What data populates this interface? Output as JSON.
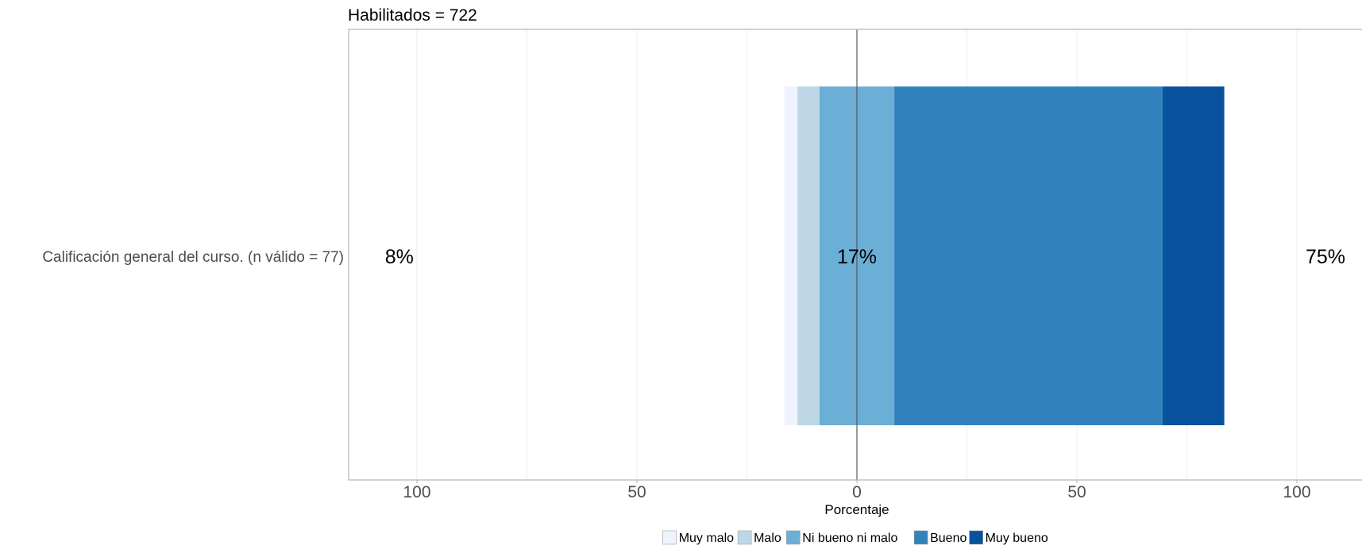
{
  "chart_data": {
    "type": "bar",
    "subtype": "diverging-stacked-horizontal",
    "title": "Habilitados = 722",
    "xlabel": "Porcentaje",
    "ylabel": "",
    "xlim": [
      -115,
      115
    ],
    "x_ticks": [
      -100,
      -50,
      0,
      50,
      100
    ],
    "x_tick_labels": [
      "100",
      "50",
      "0",
      "50",
      "100"
    ],
    "grid": true,
    "legend_position": "bottom",
    "categories": [
      "Calificación general del curso. (n válido = 77)"
    ],
    "series": [
      {
        "name": "Muy malo",
        "color": "#eff3ff",
        "values": [
          3
        ]
      },
      {
        "name": "Malo",
        "color": "#bdd7e7",
        "values": [
          5
        ]
      },
      {
        "name": "Ni bueno ni malo",
        "color": "#6baed6",
        "values": [
          17
        ]
      },
      {
        "name": "Bueno",
        "color": "#3182bd",
        "values": [
          61
        ]
      },
      {
        "name": "Muy bueno",
        "color": "#08519c",
        "values": [
          14
        ]
      }
    ],
    "summary_labels": [
      {
        "text": "8%",
        "x": -104
      },
      {
        "text": "17%",
        "x": 0
      },
      {
        "text": "75%",
        "x": 106.5
      }
    ]
  }
}
